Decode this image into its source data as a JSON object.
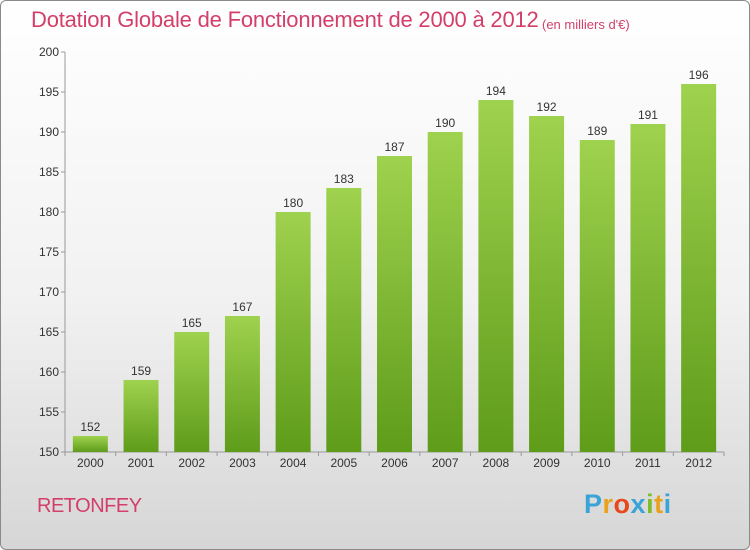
{
  "header": {
    "title": "Dotation Globale de Fonctionnement de 2000 à 2012",
    "unit": "(en milliers d'€)"
  },
  "footer": {
    "commune": "RETONFEY",
    "logo_letters": [
      "P",
      "r",
      "o",
      "x",
      "i",
      "t",
      "i"
    ],
    "logo_colors": [
      "#3aa3d8",
      "#e8a21c",
      "#e8491c",
      "#3aa3d8",
      "#7cbf2a",
      "#e8a21c",
      "#3aa3d8"
    ]
  },
  "colors": {
    "bar_light": "#9fd24e",
    "bar_dark": "#5e9c1a",
    "text_accent": "#d33f6a"
  },
  "chart_data": {
    "type": "bar",
    "categories": [
      "2000",
      "2001",
      "2002",
      "2003",
      "2004",
      "2005",
      "2006",
      "2007",
      "2008",
      "2009",
      "2010",
      "2011",
      "2012"
    ],
    "values": [
      152,
      159,
      165,
      167,
      180,
      183,
      187,
      190,
      194,
      192,
      189,
      191,
      196
    ],
    "ylim": [
      150,
      200
    ],
    "yticks": [
      150,
      155,
      160,
      165,
      170,
      175,
      180,
      185,
      190,
      195,
      200
    ],
    "grid": false
  }
}
